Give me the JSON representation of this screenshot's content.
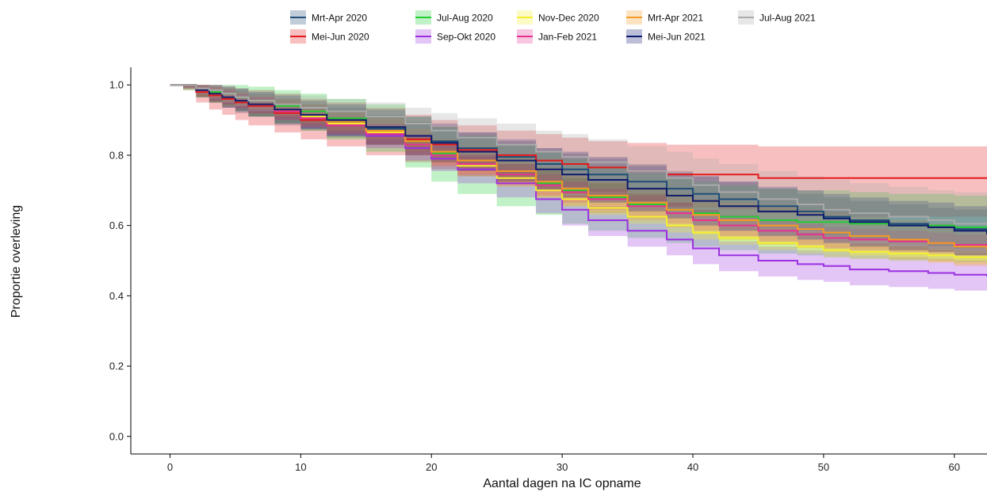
{
  "chart_data": {
    "type": "line",
    "subtype": "survival-step-with-confidence-bands",
    "xlabel": "Aantal dagen na IC opname",
    "ylabel": "Proportie overleving",
    "xlim": [
      -3,
      62.5
    ],
    "ylim": [
      -0.05,
      1.05
    ],
    "xticks": [
      0,
      10,
      20,
      30,
      40,
      50,
      60
    ],
    "yticks": [
      0.0,
      0.2,
      0.4,
      0.6,
      0.8,
      1.0
    ],
    "ytick_labels": [
      "0.0",
      "0.2",
      "0.4",
      "0.6",
      "0.8",
      "1.0"
    ],
    "grid": false,
    "legend_position": "top",
    "x": [
      0,
      1,
      2,
      3,
      4,
      5,
      6,
      8,
      10,
      12,
      15,
      18,
      20,
      22,
      25,
      28,
      30,
      32,
      35,
      38,
      40,
      42,
      45,
      48,
      50,
      52,
      55,
      58,
      60,
      62.5
    ],
    "series": [
      {
        "name": "Mrt-Apr 2020",
        "color": "#1f4e79",
        "values": [
          1.0,
          1.0,
          0.985,
          0.975,
          0.965,
          0.955,
          0.945,
          0.925,
          0.91,
          0.895,
          0.875,
          0.855,
          0.84,
          0.82,
          0.795,
          0.775,
          0.76,
          0.745,
          0.725,
          0.705,
          0.69,
          0.675,
          0.655,
          0.64,
          0.625,
          0.615,
          0.605,
          0.595,
          0.59,
          0.585
        ],
        "lower": [
          1.0,
          0.99,
          0.965,
          0.95,
          0.935,
          0.92,
          0.91,
          0.885,
          0.87,
          0.85,
          0.83,
          0.81,
          0.795,
          0.77,
          0.745,
          0.725,
          0.71,
          0.695,
          0.67,
          0.65,
          0.635,
          0.62,
          0.6,
          0.585,
          0.57,
          0.56,
          0.55,
          0.54,
          0.535,
          0.53
        ],
        "upper": [
          1.0,
          1.0,
          1.0,
          0.995,
          0.99,
          0.985,
          0.975,
          0.96,
          0.945,
          0.935,
          0.915,
          0.895,
          0.88,
          0.865,
          0.84,
          0.82,
          0.805,
          0.79,
          0.775,
          0.755,
          0.74,
          0.725,
          0.705,
          0.69,
          0.68,
          0.67,
          0.66,
          0.65,
          0.645,
          0.64
        ]
      },
      {
        "name": "Mei-Jun 2020",
        "color": "#e31a1c",
        "values": [
          1.0,
          1.0,
          0.98,
          0.97,
          0.96,
          0.95,
          0.94,
          0.92,
          0.9,
          0.885,
          0.865,
          0.845,
          0.83,
          0.815,
          0.8,
          0.785,
          0.775,
          0.765,
          0.755,
          0.745,
          0.745,
          0.745,
          0.735,
          0.735,
          0.735,
          0.735,
          0.735,
          0.735,
          0.735,
          0.735
        ],
        "lower": [
          1.0,
          0.985,
          0.95,
          0.93,
          0.915,
          0.9,
          0.885,
          0.865,
          0.845,
          0.825,
          0.8,
          0.78,
          0.76,
          0.74,
          0.72,
          0.705,
          0.69,
          0.68,
          0.665,
          0.655,
          0.65,
          0.645,
          0.635,
          0.63,
          0.63,
          0.625,
          0.625,
          0.625,
          0.625,
          0.625
        ],
        "upper": [
          1.0,
          1.0,
          1.0,
          1.0,
          0.995,
          0.99,
          0.985,
          0.975,
          0.96,
          0.95,
          0.935,
          0.915,
          0.9,
          0.885,
          0.87,
          0.86,
          0.85,
          0.84,
          0.835,
          0.83,
          0.83,
          0.83,
          0.825,
          0.825,
          0.825,
          0.825,
          0.825,
          0.825,
          0.825,
          0.825
        ]
      },
      {
        "name": "Jul-Aug 2020",
        "color": "#22cc33",
        "values": [
          1.0,
          1.0,
          0.99,
          0.98,
          0.975,
          0.965,
          0.955,
          0.94,
          0.925,
          0.905,
          0.88,
          0.84,
          0.805,
          0.775,
          0.745,
          0.72,
          0.7,
          0.68,
          0.66,
          0.645,
          0.635,
          0.625,
          0.615,
          0.61,
          0.61,
          0.605,
          0.6,
          0.6,
          0.595,
          0.595
        ],
        "lower": [
          1.0,
          0.985,
          0.965,
          0.95,
          0.94,
          0.925,
          0.91,
          0.89,
          0.87,
          0.845,
          0.81,
          0.765,
          0.725,
          0.69,
          0.655,
          0.63,
          0.605,
          0.585,
          0.565,
          0.55,
          0.54,
          0.53,
          0.52,
          0.515,
          0.51,
          0.505,
          0.5,
          0.5,
          0.495,
          0.495
        ],
        "upper": [
          1.0,
          1.0,
          1.0,
          1.0,
          1.0,
          1.0,
          0.995,
          0.985,
          0.975,
          0.96,
          0.945,
          0.91,
          0.88,
          0.855,
          0.83,
          0.81,
          0.79,
          0.77,
          0.75,
          0.735,
          0.725,
          0.715,
          0.705,
          0.7,
          0.7,
          0.695,
          0.69,
          0.69,
          0.685,
          0.685
        ]
      },
      {
        "name": "Sep-Okt 2020",
        "color": "#9b30e0",
        "values": [
          1.0,
          1.0,
          0.99,
          0.975,
          0.965,
          0.955,
          0.945,
          0.925,
          0.905,
          0.885,
          0.855,
          0.82,
          0.79,
          0.76,
          0.72,
          0.675,
          0.645,
          0.615,
          0.585,
          0.56,
          0.535,
          0.515,
          0.5,
          0.49,
          0.485,
          0.475,
          0.47,
          0.465,
          0.46,
          0.455
        ],
        "lower": [
          1.0,
          0.99,
          0.975,
          0.955,
          0.945,
          0.93,
          0.92,
          0.9,
          0.875,
          0.855,
          0.82,
          0.785,
          0.755,
          0.72,
          0.68,
          0.635,
          0.6,
          0.57,
          0.54,
          0.515,
          0.49,
          0.47,
          0.455,
          0.445,
          0.44,
          0.43,
          0.425,
          0.42,
          0.415,
          0.41
        ],
        "upper": [
          1.0,
          1.0,
          1.0,
          0.99,
          0.985,
          0.975,
          0.965,
          0.95,
          0.93,
          0.91,
          0.885,
          0.855,
          0.825,
          0.795,
          0.76,
          0.715,
          0.685,
          0.655,
          0.625,
          0.6,
          0.575,
          0.555,
          0.54,
          0.53,
          0.525,
          0.515,
          0.51,
          0.505,
          0.5,
          0.495
        ]
      },
      {
        "name": "Nov-Dec 2020",
        "color": "#f5ee30",
        "values": [
          1.0,
          1.0,
          0.985,
          0.975,
          0.965,
          0.955,
          0.945,
          0.93,
          0.91,
          0.89,
          0.865,
          0.83,
          0.8,
          0.77,
          0.735,
          0.7,
          0.675,
          0.65,
          0.625,
          0.6,
          0.58,
          0.565,
          0.55,
          0.54,
          0.53,
          0.525,
          0.52,
          0.515,
          0.51,
          0.505
        ],
        "lower": [
          1.0,
          0.99,
          0.97,
          0.96,
          0.95,
          0.94,
          0.93,
          0.91,
          0.89,
          0.87,
          0.845,
          0.81,
          0.78,
          0.75,
          0.715,
          0.68,
          0.655,
          0.63,
          0.605,
          0.58,
          0.56,
          0.545,
          0.53,
          0.52,
          0.51,
          0.505,
          0.5,
          0.495,
          0.49,
          0.485
        ],
        "upper": [
          1.0,
          1.0,
          1.0,
          0.99,
          0.98,
          0.97,
          0.96,
          0.95,
          0.93,
          0.91,
          0.885,
          0.85,
          0.82,
          0.79,
          0.755,
          0.72,
          0.695,
          0.67,
          0.645,
          0.62,
          0.6,
          0.585,
          0.57,
          0.56,
          0.55,
          0.545,
          0.54,
          0.535,
          0.53,
          0.525
        ]
      },
      {
        "name": "Jan-Feb 2021",
        "color": "#e6318f",
        "values": [
          1.0,
          1.0,
          0.985,
          0.975,
          0.965,
          0.955,
          0.945,
          0.925,
          0.905,
          0.885,
          0.86,
          0.83,
          0.8,
          0.775,
          0.745,
          0.715,
          0.695,
          0.675,
          0.655,
          0.635,
          0.615,
          0.6,
          0.585,
          0.575,
          0.565,
          0.56,
          0.555,
          0.55,
          0.545,
          0.54
        ],
        "lower": [
          1.0,
          0.99,
          0.97,
          0.955,
          0.945,
          0.935,
          0.92,
          0.9,
          0.88,
          0.86,
          0.83,
          0.8,
          0.77,
          0.745,
          0.715,
          0.685,
          0.665,
          0.645,
          0.625,
          0.605,
          0.585,
          0.57,
          0.555,
          0.545,
          0.535,
          0.53,
          0.525,
          0.52,
          0.515,
          0.51
        ],
        "upper": [
          1.0,
          1.0,
          1.0,
          0.995,
          0.985,
          0.975,
          0.965,
          0.95,
          0.93,
          0.91,
          0.89,
          0.86,
          0.83,
          0.805,
          0.775,
          0.745,
          0.725,
          0.705,
          0.685,
          0.665,
          0.645,
          0.63,
          0.615,
          0.605,
          0.595,
          0.59,
          0.585,
          0.58,
          0.575,
          0.57
        ]
      },
      {
        "name": "Mrt-Apr 2021",
        "color": "#f59a23",
        "values": [
          1.0,
          1.0,
          0.985,
          0.975,
          0.965,
          0.955,
          0.945,
          0.93,
          0.915,
          0.895,
          0.87,
          0.84,
          0.81,
          0.785,
          0.755,
          0.725,
          0.705,
          0.685,
          0.665,
          0.645,
          0.63,
          0.615,
          0.6,
          0.59,
          0.58,
          0.57,
          0.56,
          0.55,
          0.54,
          0.53
        ],
        "lower": [
          1.0,
          0.99,
          0.965,
          0.95,
          0.94,
          0.93,
          0.915,
          0.9,
          0.88,
          0.86,
          0.83,
          0.8,
          0.77,
          0.74,
          0.71,
          0.68,
          0.655,
          0.635,
          0.615,
          0.595,
          0.575,
          0.56,
          0.545,
          0.535,
          0.525,
          0.515,
          0.505,
          0.495,
          0.485,
          0.475
        ],
        "upper": [
          1.0,
          1.0,
          1.0,
          0.995,
          0.99,
          0.98,
          0.97,
          0.96,
          0.945,
          0.925,
          0.905,
          0.875,
          0.845,
          0.825,
          0.795,
          0.765,
          0.745,
          0.725,
          0.705,
          0.69,
          0.675,
          0.665,
          0.655,
          0.645,
          0.635,
          0.625,
          0.615,
          0.605,
          0.595,
          0.585
        ]
      },
      {
        "name": "Mei-Jun 2021",
        "color": "#0d1a6e",
        "values": [
          1.0,
          1.0,
          0.985,
          0.975,
          0.965,
          0.955,
          0.945,
          0.93,
          0.915,
          0.9,
          0.88,
          0.855,
          0.835,
          0.81,
          0.785,
          0.76,
          0.745,
          0.73,
          0.705,
          0.685,
          0.67,
          0.655,
          0.64,
          0.63,
          0.62,
          0.61,
          0.6,
          0.595,
          0.585,
          0.575
        ],
        "lower": [
          1.0,
          0.99,
          0.965,
          0.95,
          0.935,
          0.925,
          0.91,
          0.89,
          0.875,
          0.855,
          0.83,
          0.8,
          0.78,
          0.755,
          0.725,
          0.7,
          0.68,
          0.665,
          0.64,
          0.62,
          0.6,
          0.585,
          0.57,
          0.56,
          0.55,
          0.54,
          0.53,
          0.525,
          0.515,
          0.505
        ],
        "upper": [
          1.0,
          1.0,
          1.0,
          1.0,
          0.995,
          0.99,
          0.98,
          0.97,
          0.955,
          0.945,
          0.93,
          0.91,
          0.89,
          0.865,
          0.845,
          0.82,
          0.81,
          0.795,
          0.77,
          0.75,
          0.74,
          0.725,
          0.71,
          0.7,
          0.69,
          0.68,
          0.67,
          0.665,
          0.655,
          0.645
        ]
      },
      {
        "name": "Jul-Aug 2021",
        "color": "#aaaaaa",
        "values": [
          1.0,
          1.0,
          0.99,
          0.985,
          0.975,
          0.965,
          0.955,
          0.945,
          0.935,
          0.925,
          0.91,
          0.89,
          0.87,
          0.85,
          0.83,
          0.81,
          0.795,
          0.78,
          0.755,
          0.735,
          0.715,
          0.695,
          0.675,
          0.66,
          0.645,
          0.635,
          0.625,
          0.615,
          0.605,
          0.6
        ],
        "lower": [
          1.0,
          0.99,
          0.975,
          0.965,
          0.95,
          0.94,
          0.925,
          0.915,
          0.9,
          0.89,
          0.87,
          0.85,
          0.825,
          0.8,
          0.775,
          0.755,
          0.735,
          0.72,
          0.69,
          0.665,
          0.645,
          0.62,
          0.6,
          0.58,
          0.565,
          0.55,
          0.54,
          0.53,
          0.52,
          0.51
        ],
        "upper": [
          1.0,
          1.0,
          1.0,
          1.0,
          1.0,
          0.99,
          0.985,
          0.975,
          0.97,
          0.96,
          0.95,
          0.935,
          0.92,
          0.905,
          0.89,
          0.87,
          0.86,
          0.845,
          0.825,
          0.81,
          0.79,
          0.775,
          0.755,
          0.74,
          0.73,
          0.72,
          0.71,
          0.7,
          0.695,
          0.69
        ]
      }
    ]
  }
}
